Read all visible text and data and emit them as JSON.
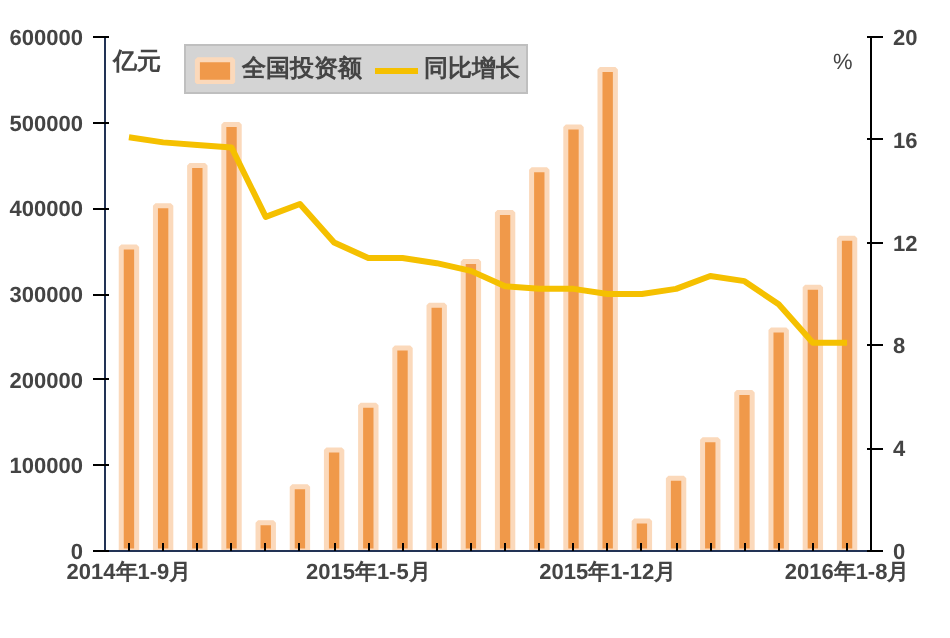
{
  "chart_data": {
    "type": "bar",
    "ylabel": "亿元",
    "y2label": "%",
    "categories": [
      "2014年1-9月",
      null,
      null,
      null,
      null,
      null,
      null,
      "2015年1-5月",
      null,
      null,
      null,
      null,
      null,
      null,
      "2015年1-12月",
      null,
      null,
      null,
      null,
      null,
      null,
      "2016年1-8月"
    ],
    "series": [
      {
        "name": "全国投资额",
        "color": "#f0994a",
        "values": [
          355000,
          403000,
          450000,
          498000,
          33000,
          75000,
          118000,
          170000,
          237000,
          287000,
          338000,
          395000,
          445000,
          495000,
          562000,
          35000,
          85000,
          130000,
          185000,
          258000,
          308000,
          365000
        ]
      },
      {
        "name": "同比增长",
        "type": "line",
        "axis": "y2",
        "color": "#f5c000",
        "values": [
          16.1,
          15.9,
          15.8,
          15.7,
          13.0,
          13.5,
          12.0,
          11.4,
          11.4,
          11.2,
          10.9,
          10.3,
          10.2,
          10.2,
          10.0,
          10.0,
          10.2,
          10.7,
          10.5,
          9.6,
          8.1,
          8.1
        ]
      }
    ],
    "ylim": [
      0,
      600000
    ],
    "yticks": [
      0,
      100000,
      200000,
      300000,
      400000,
      500000,
      600000
    ],
    "y2lim": [
      0,
      20
    ],
    "y2ticks": [
      0,
      4,
      8,
      12,
      16,
      20
    ],
    "legend": "top",
    "grid": false
  }
}
